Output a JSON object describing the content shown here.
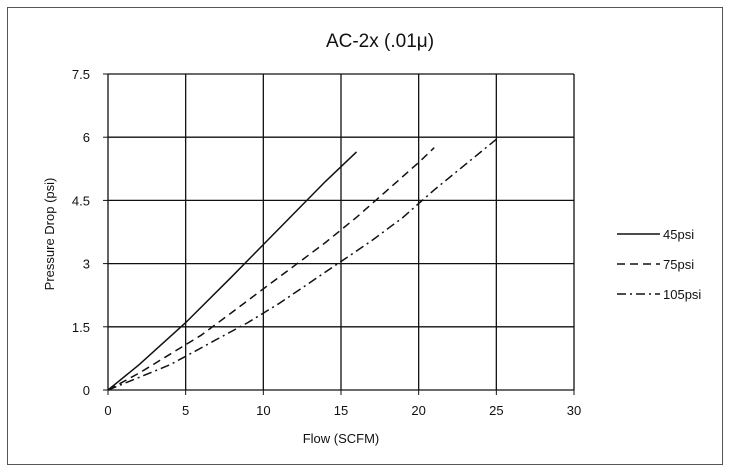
{
  "chart_data": {
    "type": "line",
    "title": "AC-2x (.01μ)",
    "xlabel": "Flow (SCFM)",
    "ylabel": "Pressure Drop (psi)",
    "xlim": [
      0,
      30
    ],
    "ylim": [
      0,
      7.5
    ],
    "x_ticks": [
      "0",
      "5",
      "10",
      "15",
      "20",
      "25",
      "30"
    ],
    "y_ticks": [
      "0",
      "1.5",
      "3",
      "4.5",
      "6",
      "7.5"
    ],
    "grid": true,
    "legend_position": "right",
    "series": [
      {
        "name": "45psi",
        "style": "solid",
        "points": [
          [
            0,
            0
          ],
          [
            2,
            0.6
          ],
          [
            5,
            1.6
          ],
          [
            8,
            2.7
          ],
          [
            10,
            3.45
          ],
          [
            12,
            4.2
          ],
          [
            14,
            4.95
          ],
          [
            16,
            5.65
          ]
        ]
      },
      {
        "name": "75psi",
        "style": "dashed",
        "points": [
          [
            0,
            0
          ],
          [
            2,
            0.4
          ],
          [
            4,
            0.85
          ],
          [
            6,
            1.3
          ],
          [
            8,
            1.85
          ],
          [
            10,
            2.4
          ],
          [
            12,
            2.95
          ],
          [
            14,
            3.5
          ],
          [
            16,
            4.1
          ],
          [
            18,
            4.75
          ],
          [
            20,
            5.4
          ],
          [
            21,
            5.75
          ]
        ]
      },
      {
        "name": "105psi",
        "style": "dashdot",
        "points": [
          [
            0,
            0
          ],
          [
            2,
            0.3
          ],
          [
            4,
            0.6
          ],
          [
            5,
            0.8
          ],
          [
            7,
            1.2
          ],
          [
            9,
            1.6
          ],
          [
            11,
            2.05
          ],
          [
            13,
            2.55
          ],
          [
            15,
            3.05
          ],
          [
            17,
            3.55
          ],
          [
            19,
            4.1
          ],
          [
            21,
            4.75
          ],
          [
            23,
            5.35
          ],
          [
            25,
            5.95
          ]
        ]
      }
    ]
  }
}
